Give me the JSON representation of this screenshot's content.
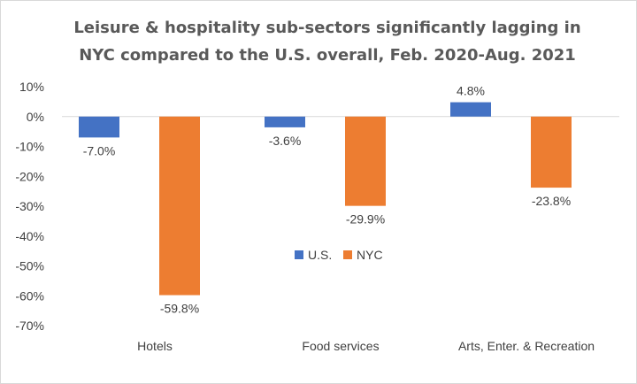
{
  "chart_data": {
    "type": "bar",
    "title": "Leisure & hospitality sub-sectors significantly lagging in NYC compared to the U.S. overall, Feb. 2020-Aug. 2021",
    "xlabel": "",
    "ylabel": "",
    "categories": [
      "Hotels",
      "Food services",
      "Arts, Enter. & Recreation"
    ],
    "series": [
      {
        "name": "U.S.",
        "color": "#4472C4",
        "values": [
          -7.0,
          -3.6,
          4.8
        ],
        "labels": [
          "-7.0%",
          "-3.6%",
          "4.8%"
        ]
      },
      {
        "name": "NYC",
        "color": "#ED7D31",
        "values": [
          -59.8,
          -29.9,
          -23.8
        ],
        "labels": [
          "-59.8%",
          "-29.9%",
          "-23.8%"
        ]
      }
    ],
    "ylim": [
      -70,
      10
    ],
    "yticks": [
      10,
      0,
      -10,
      -20,
      -30,
      -40,
      -50,
      -60,
      -70
    ],
    "ytick_labels": [
      "10%",
      "0%",
      "-10%",
      "-20%",
      "-30%",
      "-40%",
      "-50%",
      "-60%",
      "-70%"
    ],
    "grid": false,
    "legend_position": "center"
  }
}
